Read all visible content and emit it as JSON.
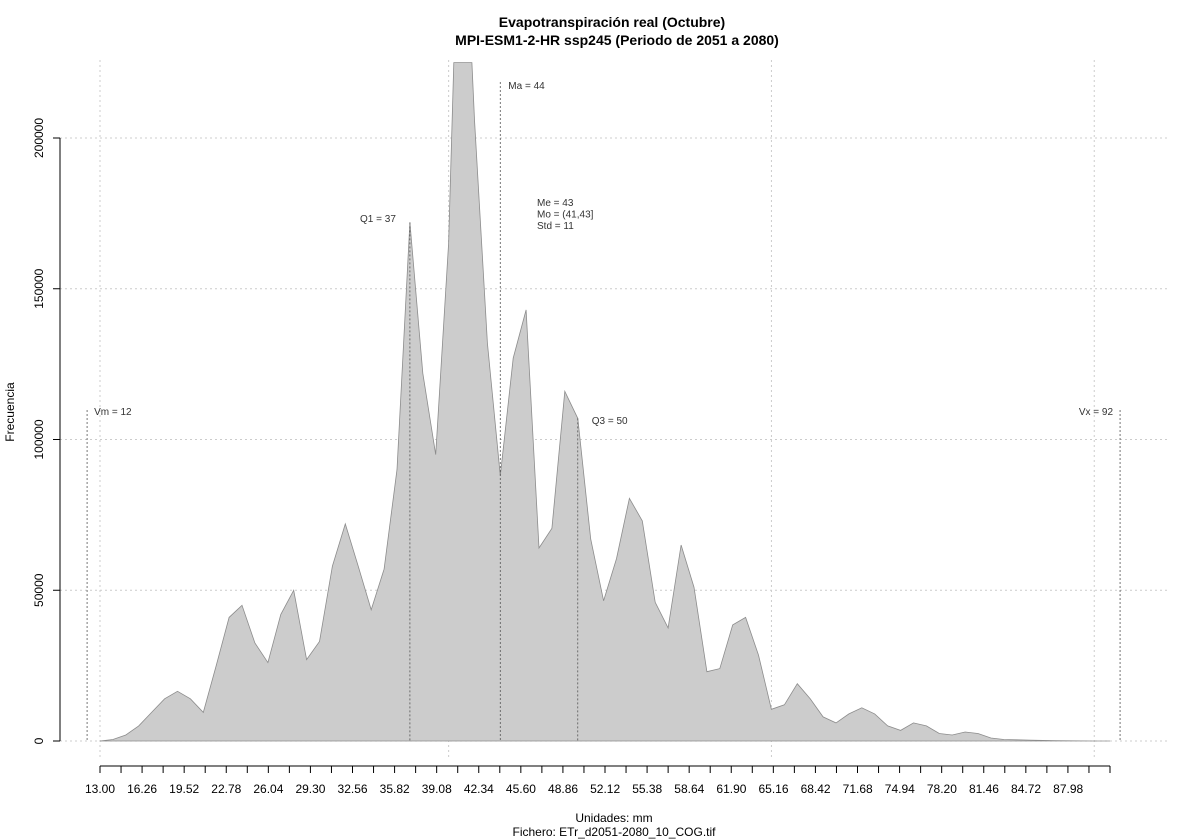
{
  "chart_data": {
    "type": "area",
    "title": "Evapotranspiración real (Octubre)",
    "subtitle": "MPI-ESM1-2-HR ssp245 (Periodo de 2051 a 2080)",
    "xlabel": "Unidades: mm",
    "caption": "Fichero: ETr_d2051-2080_10_COG.tif",
    "ylabel": "Frecuencia",
    "xlim": [
      13.0,
      91.22
    ],
    "ylim": [
      0,
      200000
    ],
    "grid": true,
    "x_ticks": [
      "13.00",
      "16.26",
      "19.52",
      "22.78",
      "26.04",
      "29.30",
      "32.56",
      "35.82",
      "39.08",
      "42.34",
      "45.60",
      "48.86",
      "52.12",
      "55.38",
      "58.64",
      "61.90",
      "65.16",
      "68.42",
      "71.68",
      "74.94",
      "78.20",
      "81.46",
      "84.72",
      "87.98"
    ],
    "y_ticks": [
      "0",
      "50000",
      "100000",
      "150000",
      "200000"
    ],
    "fill_color": "#cccccc",
    "stroke_color": "#8c8c8c",
    "x": [
      13.0,
      14.0,
      15.0,
      16.0,
      17.0,
      18.0,
      19.0,
      20.0,
      21.0,
      22.0,
      23.0,
      24.0,
      25.0,
      26.0,
      27.0,
      28.0,
      29.0,
      30.0,
      31.0,
      32.0,
      33.0,
      34.0,
      35.0,
      36.0,
      37.0,
      38.0,
      39.0,
      40.0,
      40.4,
      41.8,
      42.0,
      43.0,
      44.0,
      45.0,
      46.0,
      47.0,
      48.0,
      49.0,
      50.0,
      51.0,
      52.0,
      53.0,
      54.0,
      55.0,
      56.0,
      57.0,
      58.0,
      59.0,
      60.0,
      61.0,
      62.0,
      63.0,
      64.0,
      65.0,
      66.0,
      67.0,
      68.0,
      69.0,
      70.0,
      71.0,
      72.0,
      73.0,
      74.0,
      75.0,
      76.0,
      77.0,
      78.0,
      79.0,
      80.0,
      81.0,
      82.0,
      83.0,
      84.0,
      85.0,
      86.0,
      87.0,
      88.0,
      89.0,
      90.0,
      91.22
    ],
    "values": [
      0,
      500,
      2000,
      5000,
      9500,
      14000,
      16500,
      14000,
      9500,
      25000,
      41000,
      45000,
      32500,
      26000,
      42000,
      50000,
      27000,
      33000,
      58000,
      72000,
      58000,
      43500,
      57000,
      90000,
      172000,
      122000,
      95000,
      165000,
      225000,
      225000,
      206000,
      132000,
      88000,
      127000,
      143000,
      64000,
      70500,
      116000,
      107000,
      67000,
      46500,
      60500,
      80500,
      73000,
      46000,
      37500,
      65000,
      51000,
      23000,
      24000,
      38500,
      41000,
      28500,
      10500,
      12000,
      19000,
      14000,
      8000,
      6000,
      9000,
      11000,
      9000,
      5000,
      3500,
      6000,
      5000,
      2500,
      2000,
      3000,
      2500,
      1000,
      500,
      400,
      300,
      200,
      100,
      50,
      20,
      10,
      0
    ],
    "annotations": [
      {
        "label": "Vm = 12",
        "x": 12
      },
      {
        "label": "Q1 = 37",
        "x": 37
      },
      {
        "label": "Ma = 44",
        "x": 44
      },
      {
        "label": "Q3 = 50",
        "x": 50
      },
      {
        "label": "Vx = 92",
        "x": 92
      }
    ],
    "stats": [
      "Me = 43",
      "Mo = (41,43]",
      "Std = 11"
    ]
  }
}
